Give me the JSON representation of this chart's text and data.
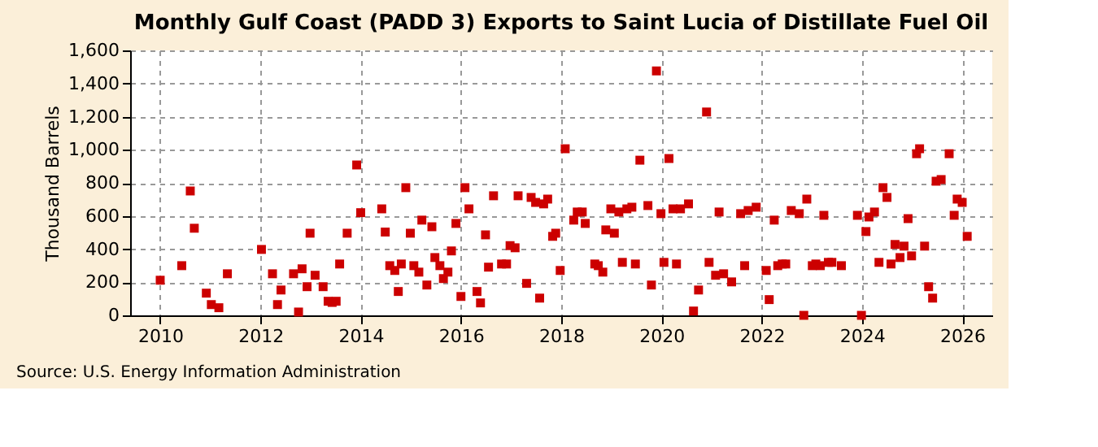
{
  "chart_data": {
    "type": "scatter",
    "title": "Monthly Gulf Coast (PADD 3) Exports to Saint Lucia of Distillate Fuel Oil",
    "ylabel": "Thousand Barrels",
    "annotations": [
      "Source: U.S. Energy Information Administration"
    ],
    "xlim": [
      2009.4,
      2026.6
    ],
    "xticks": [
      2010,
      2012,
      2014,
      2016,
      2018,
      2020,
      2022,
      2024,
      2026
    ],
    "ylim": [
      0,
      1600
    ],
    "yticks": [
      {
        "value": 0,
        "label": "0"
      },
      {
        "value": 200,
        "label": "200"
      },
      {
        "value": 400,
        "label": "400"
      },
      {
        "value": 600,
        "label": "600"
      },
      {
        "value": 800,
        "label": "800"
      },
      {
        "value": 1000,
        "label": "1,000"
      },
      {
        "value": 1200,
        "label": "1,200"
      },
      {
        "value": 1400,
        "label": "1,400"
      },
      {
        "value": 1600,
        "label": "1,600"
      }
    ],
    "grid": true,
    "marker": "square",
    "legend": false,
    "series": [
      {
        "color": "#cc0000",
        "x": [
          2010.0,
          2010.43,
          2010.6,
          2010.68,
          2010.92,
          2011.02,
          2011.17,
          2011.34,
          2012.02,
          2012.24,
          2012.34,
          2012.41,
          2012.66,
          2012.76,
          2012.83,
          2012.93,
          2012.99,
          2013.09,
          2013.25,
          2013.35,
          2013.43,
          2013.51,
          2013.58,
          2013.73,
          2013.92,
          2014.0,
          2014.42,
          2014.49,
          2014.58,
          2014.68,
          2014.75,
          2014.81,
          2014.9,
          2014.99,
          2015.06,
          2015.16,
          2015.22,
          2015.32,
          2015.42,
          2015.48,
          2015.58,
          2015.65,
          2015.74,
          2015.81,
          2015.9,
          2016.0,
          2016.08,
          2016.16,
          2016.32,
          2016.39,
          2016.49,
          2016.55,
          2016.65,
          2016.81,
          2016.91,
          2016.98,
          2017.08,
          2017.14,
          2017.31,
          2017.4,
          2017.49,
          2017.57,
          2017.65,
          2017.73,
          2017.83,
          2017.89,
          2017.98,
          2018.08,
          2018.25,
          2018.32,
          2018.42,
          2018.48,
          2018.67,
          2018.74,
          2018.83,
          2018.89,
          2018.99,
          2019.06,
          2019.15,
          2019.22,
          2019.31,
          2019.41,
          2019.48,
          2019.57,
          2019.73,
          2019.8,
          2019.9,
          2019.99,
          2020.05,
          2020.15,
          2020.23,
          2020.3,
          2020.38,
          2020.54,
          2020.64,
          2020.74,
          2020.9,
          2020.95,
          2021.08,
          2021.15,
          2021.24,
          2021.4,
          2021.58,
          2021.66,
          2021.73,
          2021.89,
          2022.09,
          2022.15,
          2022.25,
          2022.32,
          2022.41,
          2022.48,
          2022.59,
          2022.75,
          2022.84,
          2022.9,
          2023.01,
          2023.08,
          2023.17,
          2023.24,
          2023.33,
          2023.4,
          2023.59,
          2023.91,
          2023.99,
          2024.08,
          2024.14,
          2024.25,
          2024.34,
          2024.42,
          2024.5,
          2024.58,
          2024.66,
          2024.76,
          2024.84,
          2024.92,
          2024.99,
          2025.09,
          2025.15,
          2025.25,
          2025.33,
          2025.41,
          2025.48,
          2025.58,
          2025.74,
          2025.84,
          2025.9,
          2026.0,
          2026.1
        ],
        "values": [
          212,
          300,
          751,
          526,
          134,
          65,
          46,
          251,
          398,
          251,
          65,
          153,
          251,
          20,
          281,
          173,
          496,
          242,
          173,
          85,
          78,
          85,
          310,
          496,
          908,
          620,
          643,
          503,
          300,
          271,
          144,
          310,
          771,
          496,
          300,
          261,
          575,
          183,
          535,
          349,
          300,
          222,
          261,
          389,
          555,
          114,
          771,
          643,
          144,
          75,
          486,
          291,
          722,
          310,
          310,
          421,
          408,
          722,
          193,
          712,
          682,
          104,
          673,
          702,
          477,
          496,
          271,
          1006,
          575,
          624,
          624,
          555,
          310,
          300,
          261,
          516,
          643,
          496,
          624,
          320,
          643,
          653,
          310,
          937,
          663,
          183,
          1476,
          614,
          320,
          947,
          643,
          310,
          643,
          673,
          26,
          153,
          1228,
          320,
          242,
          624,
          251,
          202,
          614,
          300,
          633,
          653,
          271,
          95,
          575,
          300,
          310,
          310,
          633,
          614,
          0,
          702,
          300,
          310,
          300,
          604,
          320,
          320,
          300,
          604,
          0,
          506,
          594,
          624,
          320,
          771,
          712,
          310,
          428,
          349,
          418,
          584,
          359,
          976,
          1006,
          418,
          173,
          104,
          810,
          820,
          976,
          604,
          702,
          682,
          477
        ]
      }
    ]
  }
}
